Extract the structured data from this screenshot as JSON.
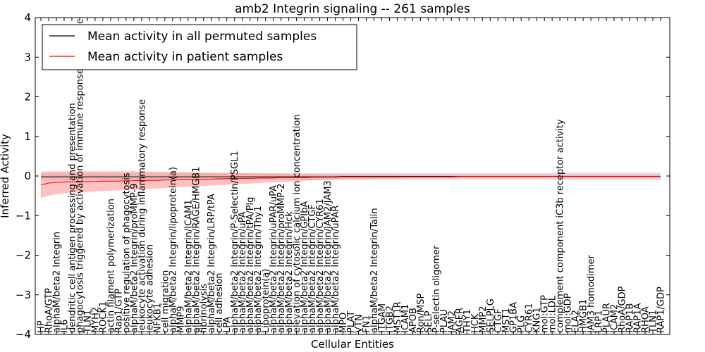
{
  "chart_data": {
    "type": "line",
    "title": "amb2 Integrin signaling -- 261 samples",
    "xlabel": "Cellular Entities",
    "ylabel": "Inferred Activity",
    "ylim": [
      -4,
      4
    ],
    "yticks": [
      "4",
      "3",
      "2",
      "1",
      "0",
      "−1",
      "−2",
      "−3",
      "−4"
    ],
    "grid": false,
    "legend_position": "top-left",
    "categories": [
      "HP",
      "RhoA/GTP",
      "alphaM/beta2 Integrin",
      "IL6",
      "dendritic cell antigen processing and presentation",
      "phagocytosis triggered by activation of immune response cell surface activating receptor",
      "TLN1",
      "MYH2",
      "ROCK1",
      "actin filament polymerization",
      "Rap1/GTP",
      "positive regulation of phagocytosis",
      "alphaM/beta2 Integrin/proMMP-9",
      "leukocyte activation during inflammatory response",
      "leukocyte adhesion",
      "NFKB1",
      "cell migration",
      "alphaM/beta2 Integrin/lipoprotein(a)",
      "MMP9",
      "alphaM/beta2 Integrin/ICAM1",
      "alphaM/beta2 Integrin/RAGE/HMGB1",
      "fibrinolysis",
      "alphaM/beta2 Integrin/LRP/tPA",
      "cell adhesion",
      "LPA",
      "alphaM/beta2 Integrin/P-Selectin/PSGL1",
      "alphaM/beta2 Integrin/uPA",
      "alphaM/beta2 Integrin/tPA/Plg",
      "alphaM/beta2 Integrin/Thy1",
      "Lipoprotein(a)",
      "alphaM/beta2 Integrin/uPAR/uPA",
      "alphaM/beta2 Integrin/proMMP-2",
      "alphaM/beta2 Integrin/Hck",
      "elevation of cytosolic calcium ion concentration",
      "alphaM/beta2 Integrin/GPIbA",
      "alphaM/beta2 Integrin/CTGF",
      "alphaM/beta2 Integrin/CYR61",
      "alphaM/beta2 Integrin/JAM2/JAM3",
      "alphaM/beta2 Integrin/uPAR",
      "MPO",
      "PLAT",
      "VTN",
      "FN1",
      "alphaM/beta2 Integrin/Talin",
      "ITGAM",
      "ITGB2",
      "MST1R",
      "ICAM1",
      "APOB",
      "Ron/MSP",
      "SELP",
      "P-selectin oligomer",
      "PLAU",
      "JAM2",
      "AGER",
      "THY1",
      "HCK",
      "MMP2",
      "SELPLG",
      "CTGF",
      "MST1",
      "GP1BA",
      "PLG",
      "CYR61",
      "KNG1",
      "mol:GTP",
      "mol:LDL",
      "complement component iC3b receptor activity",
      "mol:GDP",
      "ELA2",
      "HMGB1",
      "JAM3 homodimer",
      "LRP1",
      "PLAUR",
      "ICAM2",
      "RhoA/GDP",
      "RAP1B",
      "RAP1A",
      "RHOA",
      "TLN1",
      "RAP1/GDP"
    ],
    "series": [
      {
        "name": "Mean activity in all permuted samples",
        "color": "#000000",
        "band_color": "#cccccc",
        "values": [
          -0.02,
          -0.02,
          -0.02,
          -0.02,
          -0.02,
          -0.02,
          -0.02,
          -0.02,
          -0.02,
          -0.02,
          -0.02,
          -0.02,
          -0.02,
          -0.02,
          -0.02,
          -0.02,
          -0.02,
          -0.02,
          -0.02,
          -0.02,
          -0.02,
          -0.02,
          -0.02,
          -0.02,
          -0.02,
          -0.02,
          -0.02,
          -0.02,
          -0.02,
          -0.02,
          -0.02,
          -0.02,
          -0.02,
          -0.02,
          -0.02,
          -0.02,
          -0.02,
          -0.02,
          -0.02,
          -0.01,
          -0.01,
          -0.01,
          -0.01,
          -0.01,
          -0.01,
          -0.01,
          -0.01,
          -0.01,
          -0.01,
          -0.01,
          -0.01,
          -0.01,
          -0.01,
          -0.01,
          -0.01,
          -0.01,
          -0.01,
          -0.01,
          -0.01,
          -0.01,
          -0.01,
          -0.01,
          -0.01,
          -0.01,
          -0.01,
          -0.01,
          -0.01,
          -0.01,
          -0.01,
          -0.01,
          -0.01,
          -0.01,
          -0.01,
          -0.01,
          -0.01,
          -0.01,
          -0.01,
          -0.01,
          -0.01,
          -0.01,
          -0.01
        ],
        "lower": [
          -0.1,
          -0.1,
          -0.1,
          -0.1,
          -0.1,
          -0.1,
          -0.1,
          -0.1,
          -0.1,
          -0.1,
          -0.1,
          -0.1,
          -0.1,
          -0.1,
          -0.1,
          -0.1,
          -0.1,
          -0.1,
          -0.1,
          -0.1,
          -0.1,
          -0.1,
          -0.1,
          -0.1,
          -0.1,
          -0.1,
          -0.1,
          -0.1,
          -0.1,
          -0.1,
          -0.1,
          -0.1,
          -0.1,
          -0.1,
          -0.1,
          -0.1,
          -0.1,
          -0.1,
          -0.1,
          -0.09,
          -0.09,
          -0.09,
          -0.09,
          -0.09,
          -0.09,
          -0.09,
          -0.09,
          -0.09,
          -0.09,
          -0.09,
          -0.09,
          -0.09,
          -0.09,
          -0.09,
          -0.09,
          -0.09,
          -0.09,
          -0.09,
          -0.09,
          -0.09,
          -0.09,
          -0.09,
          -0.09,
          -0.09,
          -0.09,
          -0.09,
          -0.1,
          -0.1,
          -0.1,
          -0.1,
          -0.1,
          -0.1,
          -0.1,
          -0.1,
          -0.1,
          -0.1,
          -0.1,
          -0.1,
          -0.1,
          -0.1,
          -0.1
        ],
        "upper": [
          0.07,
          0.07,
          0.07,
          0.07,
          0.07,
          0.07,
          0.07,
          0.07,
          0.07,
          0.07,
          0.07,
          0.07,
          0.07,
          0.07,
          0.07,
          0.07,
          0.07,
          0.07,
          0.07,
          0.07,
          0.07,
          0.07,
          0.07,
          0.07,
          0.07,
          0.07,
          0.07,
          0.07,
          0.07,
          0.07,
          0.07,
          0.07,
          0.07,
          0.07,
          0.07,
          0.07,
          0.07,
          0.07,
          0.07,
          0.07,
          0.07,
          0.07,
          0.07,
          0.07,
          0.07,
          0.07,
          0.07,
          0.07,
          0.07,
          0.07,
          0.07,
          0.07,
          0.07,
          0.07,
          0.07,
          0.07,
          0.07,
          0.07,
          0.07,
          0.07,
          0.07,
          0.07,
          0.07,
          0.07,
          0.07,
          0.07,
          0.08,
          0.08,
          0.08,
          0.08,
          0.08,
          0.08,
          0.08,
          0.08,
          0.08,
          0.08,
          0.08,
          0.08,
          0.08,
          0.08,
          0.08
        ]
      },
      {
        "name": "Mean activity in patient samples",
        "color": "#ff0000",
        "band_color": "#ff9999",
        "values": [
          -0.22,
          -0.18,
          -0.16,
          -0.15,
          -0.15,
          -0.15,
          -0.14,
          -0.14,
          -0.13,
          -0.13,
          -0.13,
          -0.12,
          -0.12,
          -0.11,
          -0.11,
          -0.11,
          -0.1,
          -0.1,
          -0.09,
          -0.09,
          -0.08,
          -0.08,
          -0.08,
          -0.07,
          -0.07,
          -0.06,
          -0.06,
          -0.06,
          -0.05,
          -0.05,
          -0.05,
          -0.04,
          -0.04,
          -0.04,
          -0.04,
          -0.03,
          -0.03,
          -0.03,
          -0.03,
          -0.02,
          -0.02,
          -0.02,
          -0.02,
          -0.02,
          -0.02,
          -0.02,
          -0.02,
          -0.02,
          -0.02,
          -0.02,
          -0.02,
          -0.02,
          -0.02,
          -0.02,
          -0.01,
          -0.01,
          -0.01,
          -0.01,
          -0.01,
          -0.01,
          -0.01,
          -0.01,
          -0.01,
          -0.01,
          -0.01,
          -0.01,
          -0.01,
          -0.01,
          -0.01,
          -0.01,
          -0.01,
          -0.01,
          -0.01,
          -0.01,
          -0.01,
          -0.01,
          -0.01,
          -0.01,
          -0.01,
          -0.01,
          -0.01
        ],
        "lower": [
          -0.55,
          -0.5,
          -0.46,
          -0.44,
          -0.42,
          -0.41,
          -0.4,
          -0.39,
          -0.38,
          -0.37,
          -0.36,
          -0.35,
          -0.34,
          -0.33,
          -0.32,
          -0.31,
          -0.3,
          -0.29,
          -0.28,
          -0.27,
          -0.26,
          -0.25,
          -0.24,
          -0.23,
          -0.22,
          -0.21,
          -0.2,
          -0.19,
          -0.18,
          -0.17,
          -0.16,
          -0.15,
          -0.14,
          -0.13,
          -0.12,
          -0.11,
          -0.1,
          -0.1,
          -0.09,
          -0.09,
          -0.08,
          -0.08,
          -0.08,
          -0.07,
          -0.07,
          -0.07,
          -0.07,
          -0.06,
          -0.06,
          -0.06,
          -0.06,
          -0.06,
          -0.06,
          -0.06,
          -0.05,
          -0.05,
          -0.05,
          -0.05,
          -0.05,
          -0.05,
          -0.05,
          -0.05,
          -0.05,
          -0.05,
          -0.05,
          -0.05,
          -0.05,
          -0.05,
          -0.05,
          -0.05,
          -0.05,
          -0.05,
          -0.05,
          -0.05,
          -0.05,
          -0.05,
          -0.05,
          -0.05,
          -0.05,
          -0.05,
          -0.05
        ],
        "upper": [
          0.1,
          0.12,
          0.12,
          0.12,
          0.12,
          0.12,
          0.12,
          0.12,
          0.12,
          0.12,
          0.12,
          0.12,
          0.12,
          0.11,
          0.11,
          0.11,
          0.11,
          0.1,
          0.1,
          0.1,
          0.09,
          0.09,
          0.09,
          0.08,
          0.08,
          0.08,
          0.07,
          0.07,
          0.07,
          0.06,
          0.06,
          0.06,
          0.05,
          0.05,
          0.05,
          0.05,
          0.04,
          0.04,
          0.04,
          0.04,
          0.03,
          0.03,
          0.03,
          0.03,
          0.03,
          0.03,
          0.03,
          0.02,
          0.02,
          0.02,
          0.02,
          0.02,
          0.02,
          0.02,
          0.02,
          0.02,
          0.02,
          0.02,
          0.02,
          0.02,
          0.02,
          0.02,
          0.02,
          0.02,
          0.02,
          0.02,
          0.02,
          0.02,
          0.02,
          0.02,
          0.02,
          0.02,
          0.02,
          0.02,
          0.02,
          0.02,
          0.02,
          0.02,
          0.02,
          0.02,
          0.02
        ]
      }
    ]
  }
}
